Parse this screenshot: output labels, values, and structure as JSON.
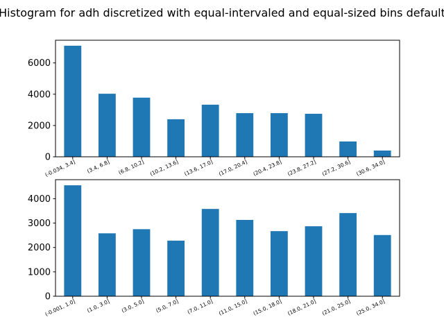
{
  "title": "Histogram for adh discretized with equal-intervaled and equal-sized bins default",
  "chart_data": [
    {
      "type": "bar",
      "color": "#1f77b4",
      "categories": [
        "(-0.034, 3.4]",
        "(3.4, 6.8]",
        "(6.8, 10.2]",
        "(10.2, 13.6]",
        "(13.6, 17.0]",
        "(17.0, 20.4]",
        "(20.4, 23.8]",
        "(23.8, 27.2]",
        "(27.2, 30.6]",
        "(30.6, 34.0]"
      ],
      "values": [
        7100,
        4030,
        3780,
        2400,
        3330,
        2790,
        2790,
        2750,
        980,
        400
      ],
      "ylim": [
        0,
        7450
      ],
      "yticks": [
        0,
        2000,
        4000,
        6000
      ]
    },
    {
      "type": "bar",
      "color": "#1f77b4",
      "categories": [
        "(-0.001, 1.0]",
        "(1.0, 3.0]",
        "(3.0, 5.0]",
        "(5.0, 7.0]",
        "(7.0, 11.0]",
        "(11.0, 15.0]",
        "(15.0, 18.0]",
        "(18.0, 21.0]",
        "(21.0, 25.0]",
        "(25.0, 34.0]"
      ],
      "values": [
        4550,
        2580,
        2750,
        2280,
        3580,
        3130,
        2670,
        2870,
        3410,
        2510
      ],
      "ylim": [
        0,
        4780
      ],
      "yticks": [
        0,
        1000,
        2000,
        3000,
        4000
      ]
    }
  ]
}
